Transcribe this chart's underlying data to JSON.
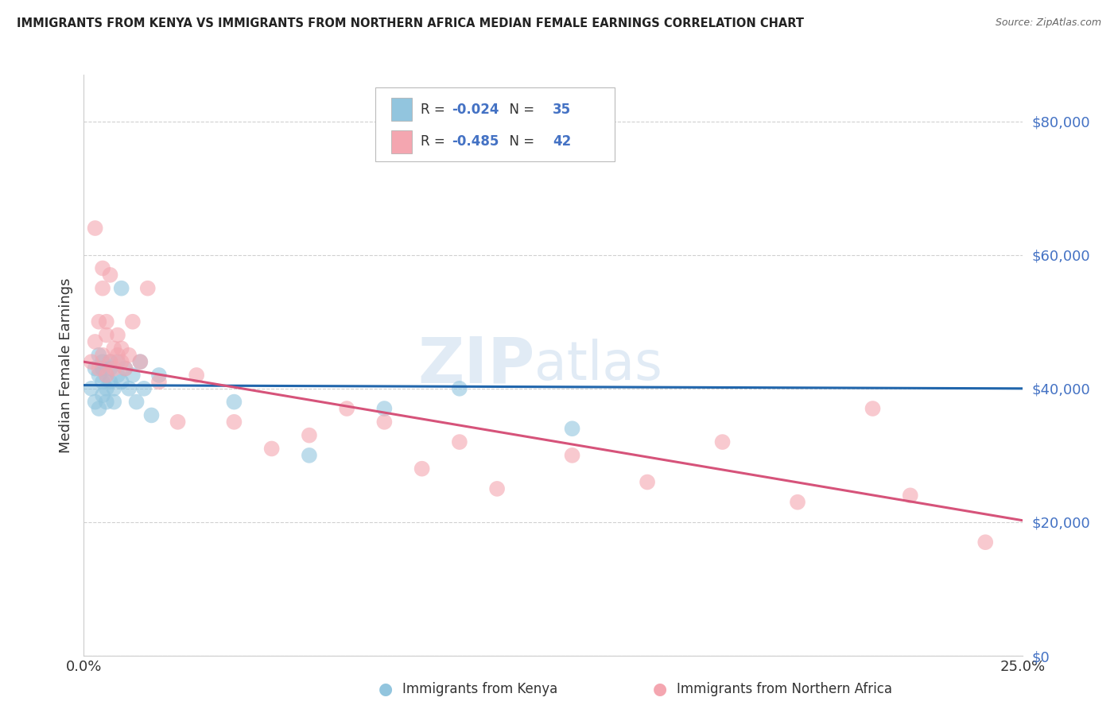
{
  "title": "IMMIGRANTS FROM KENYA VS IMMIGRANTS FROM NORTHERN AFRICA MEDIAN FEMALE EARNINGS CORRELATION CHART",
  "source": "Source: ZipAtlas.com",
  "ylabel": "Median Female Earnings",
  "legend_kenya": "Immigrants from Kenya",
  "legend_nafrica": "Immigrants from Northern Africa",
  "kenya_R": -0.024,
  "kenya_N": 35,
  "nafrica_R": -0.485,
  "nafrica_N": 42,
  "kenya_color": "#92c5de",
  "nafrica_color": "#f4a6b0",
  "kenya_line_color": "#2166ac",
  "nafrica_line_color": "#d6537a",
  "ytick_color": "#4472c4",
  "watermark_color": "#c5d8ed",
  "yticks": [
    0,
    20000,
    40000,
    60000,
    80000
  ],
  "ylim": [
    0,
    87000
  ],
  "xlim": [
    0.0,
    0.25
  ],
  "background_color": "#ffffff",
  "grid_color": "#d0d0d0",
  "kenya_x": [
    0.002,
    0.003,
    0.003,
    0.004,
    0.004,
    0.004,
    0.005,
    0.005,
    0.005,
    0.005,
    0.006,
    0.006,
    0.006,
    0.007,
    0.007,
    0.007,
    0.008,
    0.008,
    0.009,
    0.009,
    0.01,
    0.01,
    0.011,
    0.012,
    0.013,
    0.014,
    0.015,
    0.016,
    0.018,
    0.02,
    0.04,
    0.06,
    0.08,
    0.1,
    0.13
  ],
  "kenya_y": [
    40000,
    43000,
    38000,
    42000,
    45000,
    37000,
    41000,
    44000,
    39000,
    43000,
    40000,
    42000,
    38000,
    44000,
    41000,
    43000,
    40000,
    38000,
    42000,
    44000,
    41000,
    55000,
    43000,
    40000,
    42000,
    38000,
    44000,
    40000,
    36000,
    42000,
    38000,
    30000,
    37000,
    40000,
    34000
  ],
  "nafrica_x": [
    0.002,
    0.003,
    0.003,
    0.004,
    0.004,
    0.005,
    0.005,
    0.005,
    0.006,
    0.006,
    0.006,
    0.007,
    0.007,
    0.008,
    0.008,
    0.009,
    0.009,
    0.01,
    0.01,
    0.011,
    0.012,
    0.013,
    0.015,
    0.017,
    0.02,
    0.025,
    0.03,
    0.04,
    0.05,
    0.06,
    0.07,
    0.08,
    0.09,
    0.1,
    0.11,
    0.13,
    0.15,
    0.17,
    0.19,
    0.21,
    0.22,
    0.24
  ],
  "nafrica_y": [
    44000,
    47000,
    64000,
    43000,
    50000,
    55000,
    45000,
    58000,
    42000,
    50000,
    48000,
    44000,
    57000,
    46000,
    43000,
    45000,
    48000,
    44000,
    46000,
    43000,
    45000,
    50000,
    44000,
    55000,
    41000,
    35000,
    42000,
    35000,
    31000,
    33000,
    37000,
    35000,
    28000,
    32000,
    25000,
    30000,
    26000,
    32000,
    23000,
    37000,
    24000,
    17000
  ]
}
